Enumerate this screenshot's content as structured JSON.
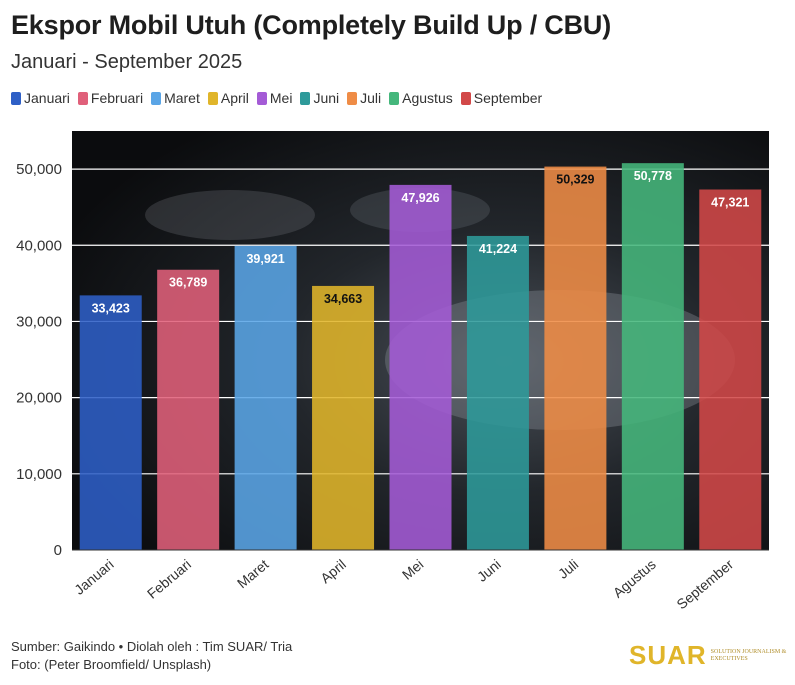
{
  "chart_data": {
    "type": "bar",
    "title": "Ekspor Mobil Utuh (Completely Build Up / CBU)",
    "subtitle": "Januari - September 2025",
    "categories": [
      "Januari",
      "Februari",
      "Maret",
      "April",
      "Mei",
      "Juni",
      "Juli",
      "Agustus",
      "September"
    ],
    "values": [
      33423,
      36789,
      39921,
      34663,
      47926,
      41224,
      50329,
      50778,
      47321
    ],
    "value_labels": [
      "33,423",
      "36,789",
      "39,921",
      "34,663",
      "47,926",
      "41,224",
      "50,329",
      "50,778",
      "47,321"
    ],
    "colors": [
      "#2e5fc6",
      "#e0607a",
      "#5aa5e6",
      "#e0b52a",
      "#a45bd6",
      "#2e9a9a",
      "#ef8c46",
      "#45b77c",
      "#d24848"
    ],
    "ylim": [
      0,
      55000
    ],
    "yticks": [
      0,
      10000,
      20000,
      30000,
      40000,
      50000
    ],
    "ytick_labels": [
      "0",
      "10,000",
      "20,000",
      "30,000",
      "40,000",
      "50,000"
    ],
    "xlabel": "",
    "ylabel": "",
    "grid": true,
    "legend_position": "top-left"
  },
  "footer": {
    "source": "Sumber: Gaikindo • Diolah oleh : Tim SUAR/ Tria",
    "photo": "Foto: (Peter Broomfield/ Unsplash)"
  },
  "brand": {
    "logo": "SUAR",
    "tagline": "SOLUTION JOURNALISM & EXECUTIVES"
  }
}
